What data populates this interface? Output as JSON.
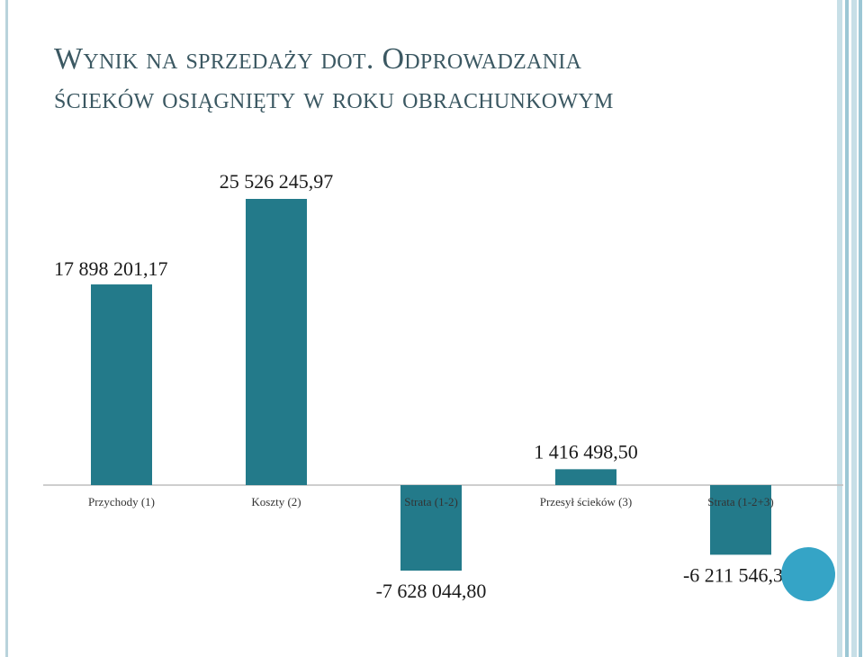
{
  "slide": {
    "title_line1": "Wynik na sprzedaży dot. Odprowadzania",
    "title_line2": "ścieków osiągnięty w roku obrachunkowym"
  },
  "colors": {
    "bar": "#237a8a",
    "title": "#3b5862",
    "accent_circle": "#35a4c6",
    "border": "#b9d3dc"
  },
  "chart_data": {
    "type": "bar",
    "categories": [
      "Przychody (1)",
      "Koszty (2)",
      "Strata (1-2)",
      "Przesył ścieków (3)",
      "Strata (1-2+3)"
    ],
    "values": [
      17898201.17,
      25526245.97,
      -7628044.8,
      1416498.5,
      -6211546.3
    ],
    "data_labels": [
      "17 898 201,17",
      "25 526 245,97",
      "-7 628 044,80",
      "1 416 498,50",
      "-6 211 546,30"
    ],
    "title": "",
    "xlabel": "",
    "ylabel": "",
    "grid": false,
    "legend": "none"
  }
}
